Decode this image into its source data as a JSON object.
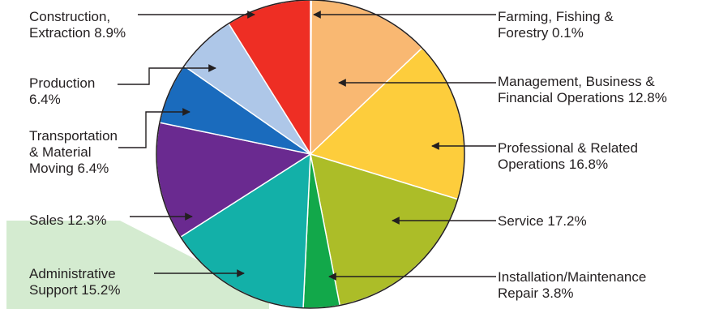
{
  "chart_data": {
    "type": "pie",
    "unit": "%",
    "slices": [
      {
        "label_lines": [
          "Farming, Fishing &",
          "Forestry 0.1%"
        ],
        "value": 0.1,
        "color": "#ffffff"
      },
      {
        "label_lines": [
          "Management, Business &",
          "Financial Operations 12.8%"
        ],
        "value": 12.8,
        "color": "#f9b872"
      },
      {
        "label_lines": [
          "Professional & Related",
          "Operations 16.8%"
        ],
        "value": 16.8,
        "color": "#fdcd3c"
      },
      {
        "label_lines": [
          "Service 17.2%"
        ],
        "value": 17.2,
        "color": "#acbd28"
      },
      {
        "label_lines": [
          "Installation/Maintenance",
          "Repair 3.8%"
        ],
        "value": 3.8,
        "color": "#12a84a"
      },
      {
        "label_lines": [
          "Administrative",
          "Support 15.2%"
        ],
        "value": 15.2,
        "color": "#13b0a8"
      },
      {
        "label_lines": [
          "Sales 12.3%"
        ],
        "value": 12.3,
        "color": "#6a2a90"
      },
      {
        "label_lines": [
          "Transportation",
          "& Material",
          "Moving 6.4%"
        ],
        "value": 6.4,
        "color": "#1a6bbd"
      },
      {
        "label_lines": [
          "Production",
          "6.4%"
        ],
        "value": 6.4,
        "color": "#aec7e8"
      },
      {
        "label_lines": [
          "Construction,",
          "Extraction 8.9%"
        ],
        "value": 8.9,
        "color": "#ee2e24"
      }
    ]
  },
  "colors": {
    "highlight_band": "#d4ebd0",
    "outline": "#231f20"
  }
}
